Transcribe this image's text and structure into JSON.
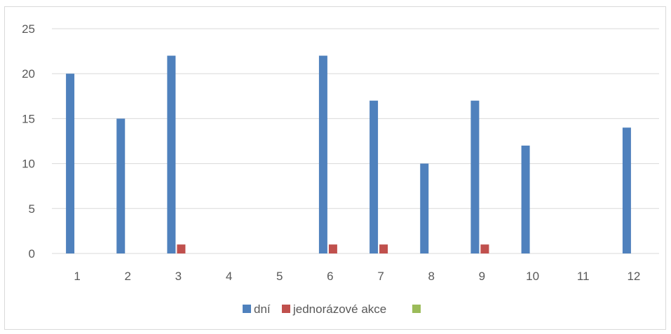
{
  "chart_data": {
    "type": "bar",
    "categories": [
      "1",
      "2",
      "3",
      "4",
      "5",
      "6",
      "7",
      "8",
      "9",
      "10",
      "11",
      "12"
    ],
    "series": [
      {
        "name": "dní",
        "color": "#4f81bd",
        "values": [
          20,
          15,
          22,
          0,
          0,
          22,
          17,
          10,
          17,
          12,
          0,
          14
        ]
      },
      {
        "name": "jednorázové akce",
        "color": "#c0504d",
        "values": [
          0,
          0,
          1,
          0,
          0,
          1,
          1,
          0,
          1,
          0,
          0,
          0
        ]
      },
      {
        "name": "",
        "color": "#9bbb59",
        "values": [
          0,
          0,
          0,
          0,
          0,
          0,
          0,
          0,
          0,
          0,
          0,
          0
        ]
      }
    ],
    "ylim": [
      0,
      25
    ],
    "yticks": [
      0,
      5,
      10,
      15,
      20,
      25
    ],
    "grid": true,
    "legend_position": "bottom"
  }
}
